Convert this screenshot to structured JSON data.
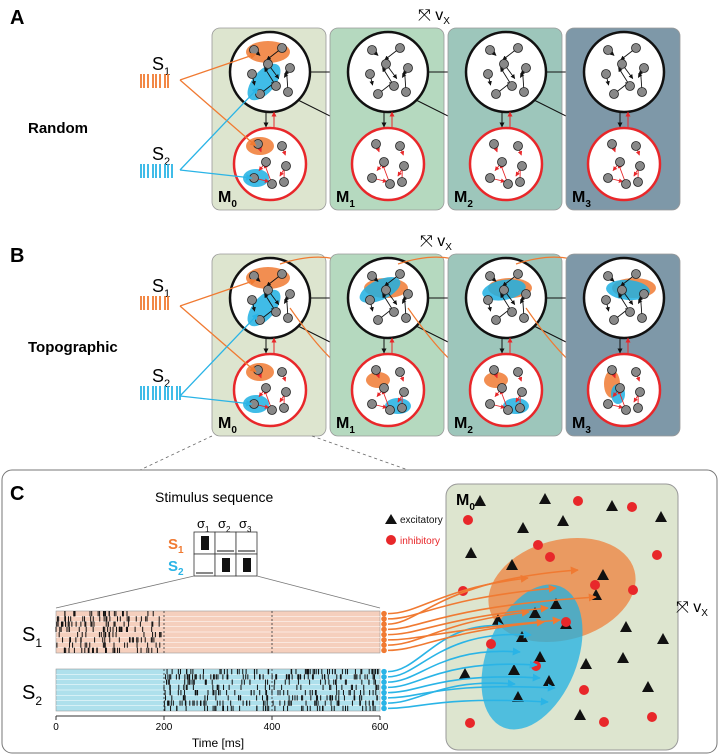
{
  "panels": {
    "a": {
      "letter": "A",
      "label": "Random"
    },
    "b": {
      "letter": "B",
      "label": "Topographic"
    },
    "c": {
      "letter": "C"
    }
  },
  "stimuli": {
    "s1": "S",
    "s1_sub": "1",
    "s2": "S",
    "s2_sub": "2"
  },
  "modules": [
    {
      "main": "M",
      "sub": "0"
    },
    {
      "main": "M",
      "sub": "1"
    },
    {
      "main": "M",
      "sub": "2"
    },
    {
      "main": "M",
      "sub": "3"
    }
  ],
  "velocity": {
    "main": "v",
    "sub": "X"
  },
  "stimulus_sequence": {
    "title": "Stimulus sequence",
    "sigmas": [
      {
        "main": "σ",
        "sub": "1"
      },
      {
        "main": "σ",
        "sub": "2"
      },
      {
        "main": "σ",
        "sub": "3"
      }
    ],
    "rows": [
      {
        "main": "S",
        "sub": "1",
        "active": [
          true,
          false,
          false
        ]
      },
      {
        "main": "S",
        "sub": "2",
        "active": [
          false,
          true,
          true
        ]
      }
    ]
  },
  "raster": {
    "xlabel": "Time [ms]",
    "ticks": [
      "0",
      "200",
      "400",
      "600"
    ],
    "tick_values": [
      0,
      200,
      400,
      600
    ],
    "xlim": [
      0,
      600
    ],
    "dividers": [
      200,
      400
    ],
    "s1_active": [
      0,
      200
    ],
    "s2_active": [
      200,
      600
    ]
  },
  "m0_panel": {
    "title_main": "M",
    "title_sub": "0",
    "legend": [
      {
        "label": "excitatory",
        "marker": "triangle",
        "color": "#111111"
      },
      {
        "label": "inhibitory",
        "marker": "circle",
        "color": "#e8272a"
      }
    ]
  },
  "colors": {
    "s1": "#f07a32",
    "s2": "#2ab4e6",
    "orange_blob": "#f07a32",
    "blue_blob": "#1fb0e3",
    "inhibitory": "#e8272a",
    "node": "#888888",
    "module_bg": [
      "#dde5cf",
      "#b5d9bf",
      "#9dc6bb",
      "#7e98a8"
    ],
    "s1_band": "#f5cfbd",
    "s2_band": "#aee0ec"
  }
}
